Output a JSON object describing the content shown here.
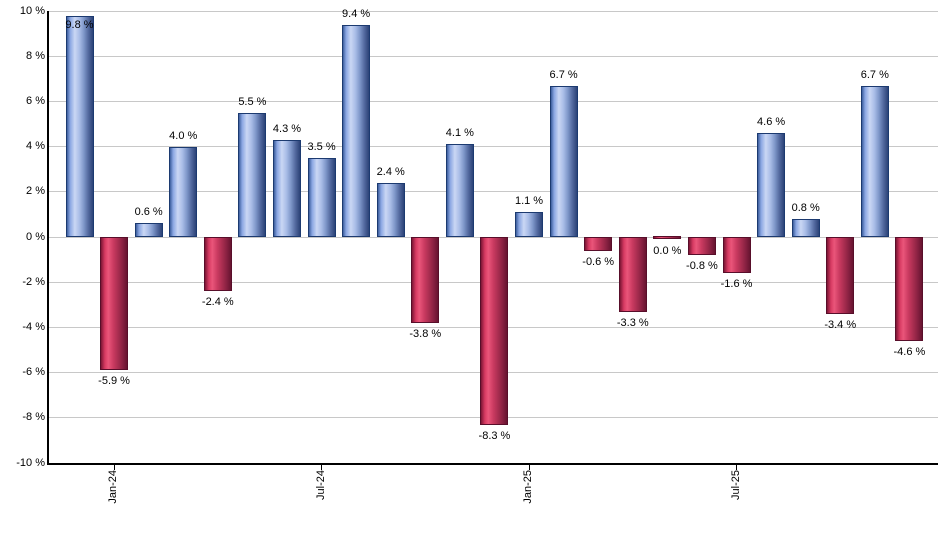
{
  "chart_data": {
    "type": "bar",
    "title": "",
    "xlabel": "",
    "ylabel": "",
    "ylim": [
      -10,
      10
    ],
    "y_tick_step": 2,
    "grid": true,
    "legend": "none",
    "bars": [
      {
        "value": 9.8,
        "label": "9.8 %"
      },
      {
        "value": -5.9,
        "label": "-5.9 %"
      },
      {
        "value": 0.6,
        "label": "0.6 %"
      },
      {
        "value": 4.0,
        "label": "4.0 %"
      },
      {
        "value": -2.4,
        "label": "-2.4 %"
      },
      {
        "value": 5.5,
        "label": "5.5 %"
      },
      {
        "value": 4.3,
        "label": "4.3 %"
      },
      {
        "value": 3.5,
        "label": "3.5 %"
      },
      {
        "value": 9.4,
        "label": "9.4 %"
      },
      {
        "value": 2.4,
        "label": "2.4 %"
      },
      {
        "value": -3.8,
        "label": "-3.8 %"
      },
      {
        "value": 4.1,
        "label": "4.1 %"
      },
      {
        "value": -8.3,
        "label": "-8.3 %"
      },
      {
        "value": 1.1,
        "label": "1.1 %"
      },
      {
        "value": 6.7,
        "label": "6.7 %"
      },
      {
        "value": -0.6,
        "label": "-0.6 %"
      },
      {
        "value": -3.3,
        "label": "-3.3 %"
      },
      {
        "value": 0.0,
        "label": "0.0 %"
      },
      {
        "value": -0.8,
        "label": "-0.8 %"
      },
      {
        "value": -1.6,
        "label": "-1.6 %"
      },
      {
        "value": 4.6,
        "label": "4.6 %"
      },
      {
        "value": 0.8,
        "label": "0.8 %"
      },
      {
        "value": -3.4,
        "label": "-3.4 %"
      },
      {
        "value": 6.7,
        "label": "6.7 %"
      },
      {
        "value": -4.6,
        "label": "-4.6 %"
      }
    ],
    "y_ticks": [
      {
        "value": 10,
        "label": "10 %"
      },
      {
        "value": 8,
        "label": "8 %"
      },
      {
        "value": 6,
        "label": "6 %"
      },
      {
        "value": 4,
        "label": "4 %"
      },
      {
        "value": 2,
        "label": "2 %"
      },
      {
        "value": 0,
        "label": "0 %"
      },
      {
        "value": -2,
        "label": "-2 %"
      },
      {
        "value": -4,
        "label": "-4 %"
      },
      {
        "value": -6,
        "label": "-6 %"
      },
      {
        "value": -8,
        "label": "-8 %"
      },
      {
        "value": -10,
        "label": "-10 %"
      }
    ],
    "x_ticks": [
      {
        "label": "Jan-24",
        "bar_index": 1
      },
      {
        "label": "Jul-24",
        "bar_index": 7
      },
      {
        "label": "Jan-25",
        "bar_index": 13
      },
      {
        "label": "Jul-25",
        "bar_index": 19
      }
    ],
    "colors": {
      "positive_base": "#4472c4",
      "positive_border": "#1c3a70",
      "positive_gradient": [
        "#3d5f9e 0%",
        "#8aa6e2 12%",
        "#cad7f4 30%",
        "#a9bce7 48%",
        "#7e97c9 65%",
        "#53699f 82%",
        "#2c4377 100%"
      ],
      "negative_base": "#c0315a",
      "negative_border": "#580e2a",
      "negative_gradient": [
        "#7d1634 0%",
        "#d63a62 15%",
        "#ea557a 28%",
        "#c93a60 48%",
        "#a52c4e 68%",
        "#851f40 85%",
        "#671430 100%"
      ],
      "gridline": "#c8c8c8",
      "axis": "#000000",
      "text": "#000000",
      "background": "#ffffff"
    }
  }
}
